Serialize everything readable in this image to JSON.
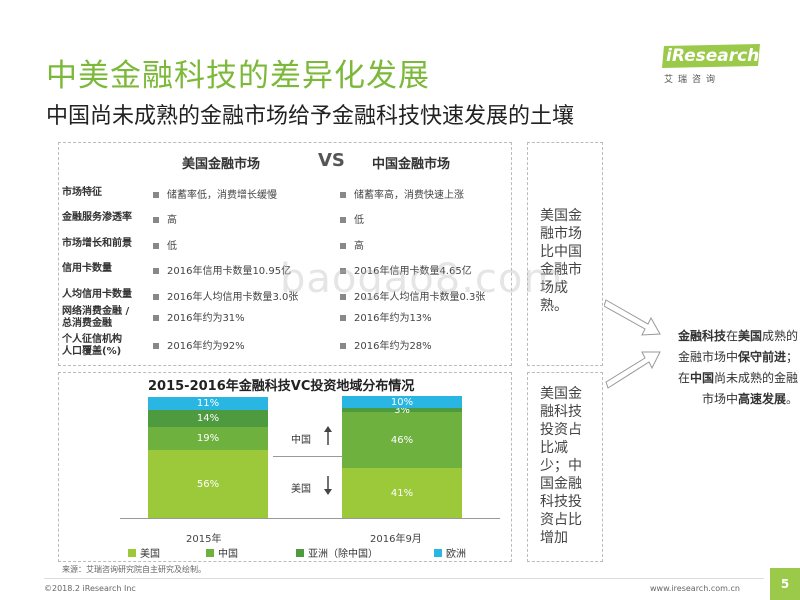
{
  "header": {
    "title": "中美金融科技的差异化发展",
    "subtitle": "中国尚未成熟的金融市场给予金融科技快速发展的土壤",
    "logo_text": "iResearch",
    "logo_sub": "艾瑞咨询"
  },
  "comparison": {
    "us_header": "美国金融市场",
    "vs": "VS",
    "cn_header": "中国金融市场",
    "rows": [
      {
        "label": "市场特征",
        "us": "储蓄率低，消费增长缓慢",
        "cn": "储蓄率高，消费快速上涨"
      },
      {
        "label": "金融服务渗透率",
        "us": "高",
        "cn": "低"
      },
      {
        "label": "市场增长和前景",
        "us": "低",
        "cn": "高"
      },
      {
        "label": "信用卡数量",
        "us": "2016年信用卡数量10.95亿",
        "cn": "2016年信用卡数量4.65亿"
      },
      {
        "label": "人均信用卡数量",
        "us": "2016年人均信用卡数量3.0张",
        "cn": "2016年人均信用卡数量0.3张"
      },
      {
        "label": "网络消费金融 /",
        "label2": "总消费金融",
        "us": "2016年约为31%",
        "cn": "2016年约为13%"
      },
      {
        "label": "个人征信机构",
        "label2": "人口覆盖(%)",
        "us": "2016年约为92%",
        "cn": "2016年约为28%"
      }
    ],
    "side_text": "美国金融市场比中国金融市场成熟。"
  },
  "chart_data": {
    "type": "bar",
    "title": "2015-2016年金融科技VC投资地域分布情况",
    "categories": [
      "2015年",
      "2016年9月"
    ],
    "stacked": true,
    "series": [
      {
        "name": "美国",
        "values": [
          56,
          41
        ],
        "color": "#9bc93a"
      },
      {
        "name": "中国",
        "values": [
          19,
          46
        ],
        "color": "#6fb13e"
      },
      {
        "name": "亚洲（除中国）",
        "values": [
          14,
          3
        ],
        "color": "#4e9a3f"
      },
      {
        "name": "欧洲",
        "values": [
          11,
          10
        ],
        "color": "#29b6e3"
      }
    ],
    "labels": [
      [
        "56%",
        "19%",
        "14%",
        "11%"
      ],
      [
        "41%",
        "46%",
        "3%",
        "10%"
      ]
    ],
    "annotations": [
      {
        "text": "中国",
        "direction": "up"
      },
      {
        "text": "美国",
        "direction": "down"
      }
    ],
    "legend_position": "bottom"
  },
  "chart_side_text": "美国金融科技投资占比减少；中国金融科技投资占比增加",
  "conclusion": {
    "line1_a": "金融科技",
    "line1_b": "在",
    "line1_c": "美国",
    "line1_d": "成熟的",
    "line2_a": "金融市场中",
    "line2_b": "保守前进",
    "line2_c": "；",
    "line3_a": "在",
    "line3_b": "中国",
    "line3_c": "尚未成熟的金融",
    "line4_a": "市场中",
    "line4_b": "高速发展",
    "line4_c": "。"
  },
  "footer": {
    "source": "来源：艾瑞咨询研究院自主研究及绘制。",
    "copyright": "©2018.2 iResearch Inc",
    "url": "www.iresearch.com.cn",
    "page": "5"
  },
  "watermark": "baogao8.com"
}
